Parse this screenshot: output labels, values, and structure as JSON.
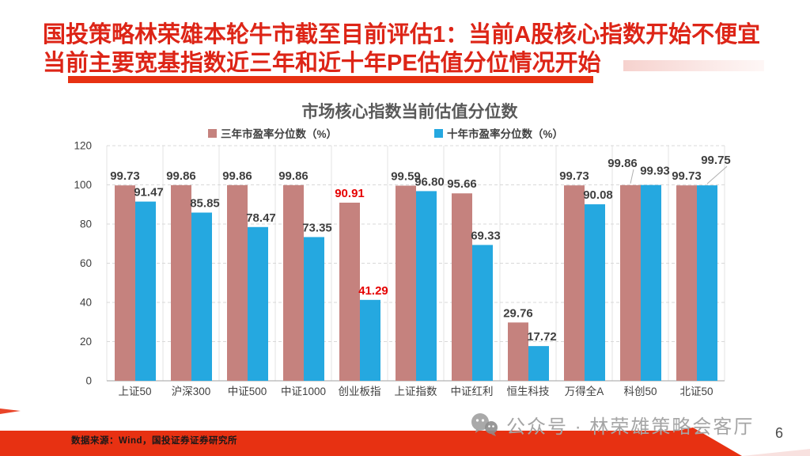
{
  "slide": {
    "title_line1": "国投策略林荣雄本轮牛市截至目前评估1：当前A股核心指数开始不便宜",
    "title_line2": "当前主要宽基指数近三年和近十年PE估值分位情况开始",
    "title_color": "#dd2517",
    "accent_ribbon_color": "#e73112",
    "source_note": "数据来源：Wind，国投证券证券研究所",
    "watermark": "公众号 · 林荣雄策略会客厅",
    "page_number": "6"
  },
  "chart_data": {
    "type": "bar",
    "title": "市场核心指数当前估值分位数",
    "categories": [
      "上证50",
      "沪深300",
      "中证500",
      "中证1000",
      "创业板指",
      "上证指数",
      "中证红利",
      "恒生科技",
      "万得全A",
      "科创50",
      "北证50"
    ],
    "series": [
      {
        "name": "三年市盈率分位数（%）",
        "color": "#c5827e",
        "values": [
          99.73,
          99.86,
          99.86,
          99.86,
          90.91,
          99.59,
          95.66,
          29.76,
          99.73,
          99.86,
          99.73
        ],
        "highlight_indices": [
          4
        ]
      },
      {
        "name": "十年市盈率分位数（%）",
        "color": "#25a8e0",
        "values": [
          91.47,
          85.85,
          78.47,
          73.35,
          41.29,
          96.8,
          69.33,
          17.72,
          90.08,
          99.93,
          99.75
        ],
        "highlight_indices": [
          4
        ]
      }
    ],
    "label_color": "#3f3f3f",
    "highlight_label_color": "#e60000",
    "yticks": [
      0,
      20,
      40,
      60,
      80,
      100,
      120
    ],
    "ylim": [
      0,
      120
    ],
    "grid": true,
    "legend_position": "top"
  }
}
